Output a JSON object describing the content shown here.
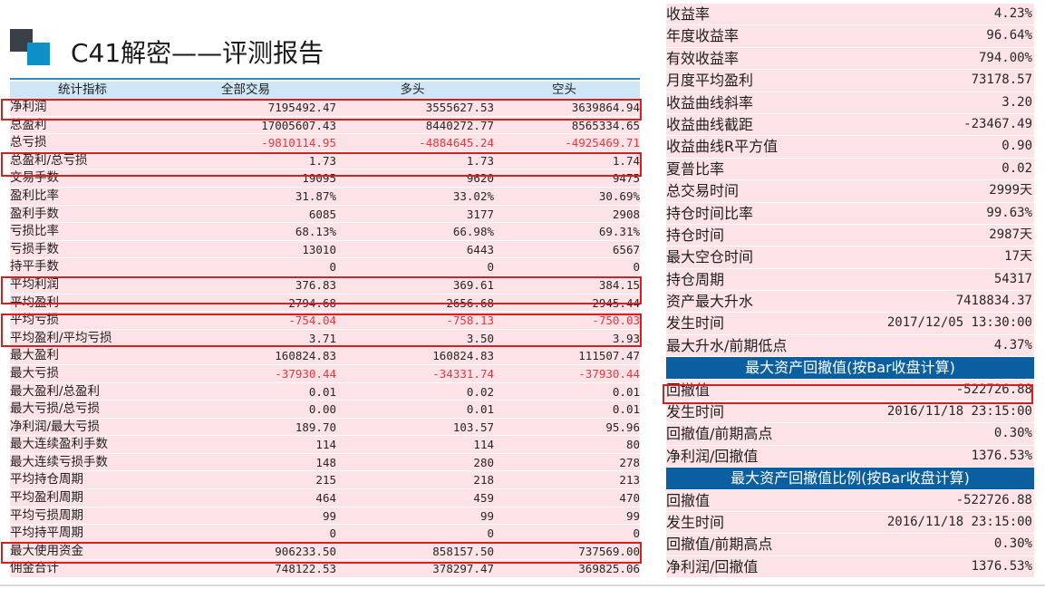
{
  "header": {
    "title": "C41解密——评测报告"
  },
  "left_table": {
    "columns": [
      "统计指标",
      "全部交易",
      "多头",
      "空头"
    ],
    "rows": [
      {
        "label": "净利润",
        "all": "7195492.47",
        "long": "3555627.53",
        "short": "3639864.94"
      },
      {
        "label": "总盈利",
        "all": "17005607.43",
        "long": "8440272.77",
        "short": "8565334.65"
      },
      {
        "label": "总亏损",
        "all": "-9810114.95",
        "long": "-4884645.24",
        "short": "-4925469.71"
      },
      {
        "label": "总盈利/总亏损",
        "all": "1.73",
        "long": "1.73",
        "short": "1.74"
      },
      {
        "label": "交易手数",
        "all": "19095",
        "long": "9620",
        "short": "9475"
      },
      {
        "label": "盈利比率",
        "all": "31.87%",
        "long": "33.02%",
        "short": "30.69%"
      },
      {
        "label": "盈利手数",
        "all": "6085",
        "long": "3177",
        "short": "2908"
      },
      {
        "label": "亏损比率",
        "all": "68.13%",
        "long": "66.98%",
        "short": "69.31%"
      },
      {
        "label": "亏损手数",
        "all": "13010",
        "long": "6443",
        "short": "6567"
      },
      {
        "label": "持平手数",
        "all": "0",
        "long": "0",
        "short": "0"
      },
      {
        "label": "平均利润",
        "all": "376.83",
        "long": "369.61",
        "short": "384.15"
      },
      {
        "label": "平均盈利",
        "all": "2794.68",
        "long": "2656.68",
        "short": "2945.44"
      },
      {
        "label": "平均亏损",
        "all": "-754.04",
        "long": "-758.13",
        "short": "-750.03"
      },
      {
        "label": "平均盈利/平均亏损",
        "all": "3.71",
        "long": "3.50",
        "short": "3.93"
      },
      {
        "label": "最大盈利",
        "all": "160824.83",
        "long": "160824.83",
        "short": "111507.47"
      },
      {
        "label": "最大亏损",
        "all": "-37930.44",
        "long": "-34331.74",
        "short": "-37930.44"
      },
      {
        "label": "最大盈利/总盈利",
        "all": "0.01",
        "long": "0.02",
        "short": "0.01"
      },
      {
        "label": "最大亏损/总亏损",
        "all": "0.00",
        "long": "0.01",
        "short": "0.01"
      },
      {
        "label": "净利润/最大亏损",
        "all": "189.70",
        "long": "103.57",
        "short": "95.96"
      },
      {
        "label": "最大连续盈利手数",
        "all": "114",
        "long": "114",
        "short": "80"
      },
      {
        "label": "最大连续亏损手数",
        "all": "148",
        "long": "280",
        "short": "278"
      },
      {
        "label": "平均持仓周期",
        "all": "215",
        "long": "218",
        "short": "213"
      },
      {
        "label": "平均盈利周期",
        "all": "464",
        "long": "459",
        "short": "470"
      },
      {
        "label": "平均亏损周期",
        "all": "99",
        "long": "99",
        "short": "99"
      },
      {
        "label": "平均持平周期",
        "all": "0",
        "long": "0",
        "short": "0"
      },
      {
        "label": "最大使用资金",
        "all": "906233.50",
        "long": "858157.50",
        "short": "737569.00"
      },
      {
        "label": "佣金合计",
        "all": "748122.53",
        "long": "378297.47",
        "short": "369825.06"
      }
    ]
  },
  "right_table": {
    "rows": [
      {
        "label": "收益率",
        "value": "4.23%"
      },
      {
        "label": "年度收益率",
        "value": "96.64%"
      },
      {
        "label": "有效收益率",
        "value": "794.00%"
      },
      {
        "label": "月度平均盈利",
        "value": "73178.57"
      },
      {
        "label": "收益曲线斜率",
        "value": "3.20"
      },
      {
        "label": "收益曲线截距",
        "value": "-23467.49"
      },
      {
        "label": "收益曲线R平方值",
        "value": "0.90"
      },
      {
        "label": "夏普比率",
        "value": "0.02"
      },
      {
        "label": "总交易时间",
        "value": "2999天"
      },
      {
        "label": "持仓时间比率",
        "value": "99.63%"
      },
      {
        "label": "持仓时间",
        "value": "2987天"
      },
      {
        "label": "最大空仓时间",
        "value": "17天"
      },
      {
        "label": "持仓周期",
        "value": "54317"
      },
      {
        "label": "资产最大升水",
        "value": "7418834.37"
      },
      {
        "label": "发生时间",
        "value": "2017/12/05 13:30:00"
      },
      {
        "label": "最大升水/前期低点",
        "value": "4.37%"
      }
    ],
    "section1": {
      "title": "最大资产回撤值(按Bar收盘计算)",
      "rows": [
        {
          "label": "回撤值",
          "value": "-522726.88"
        },
        {
          "label": "发生时间",
          "value": "2016/11/18 23:15:00"
        },
        {
          "label": "回撤值/前期高点",
          "value": "0.30%"
        },
        {
          "label": "净利润/回撤值",
          "value": "1376.53%"
        }
      ]
    },
    "section2": {
      "title": "最大资产回撤值比例(按Bar收盘计算)",
      "rows": [
        {
          "label": "回撤值",
          "value": "-522726.88"
        },
        {
          "label": "发生时间",
          "value": "2016/11/18 23:15:00"
        },
        {
          "label": "回撤值/前期高点",
          "value": "0.30%"
        },
        {
          "label": "净利润/回撤值",
          "value": "1376.53%"
        }
      ]
    }
  },
  "colors": {
    "row_bg": "#fde3e7",
    "header_bg": "#cfe6f6",
    "section_bg": "#0b5fa0",
    "negative": "#e8373a",
    "highlight": "#d62020"
  }
}
